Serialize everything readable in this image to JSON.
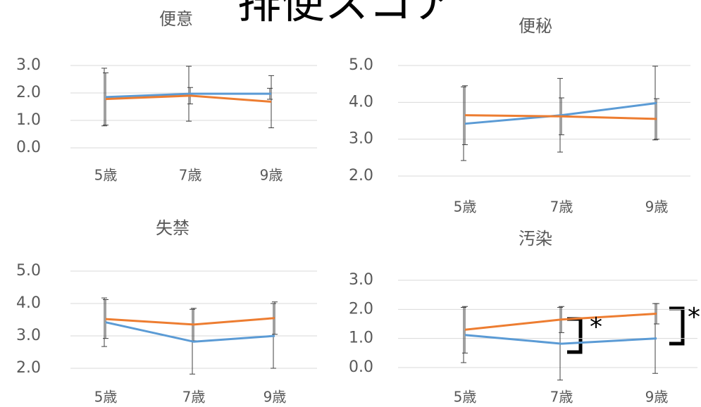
{
  "title": "排便スコア",
  "chart_data": [
    {
      "type": "line",
      "title": "便意",
      "categories": [
        "5歳",
        "7歳",
        "9歳"
      ],
      "series": [
        {
          "color": "#5b9bd5",
          "values": [
            1.85,
            1.97,
            1.97
          ],
          "errors": [
            1.05,
            1.0,
            0.2
          ]
        },
        {
          "color": "#ed7d31",
          "values": [
            1.78,
            1.9,
            1.68
          ],
          "errors": [
            0.95,
            0.3,
            0.95
          ]
        }
      ],
      "ylim": [
        0,
        3
      ],
      "yticks": [
        {
          "value": 0,
          "label": "0.0"
        },
        {
          "value": 1,
          "label": "1.0"
        },
        {
          "value": 2,
          "label": "2.0"
        },
        {
          "value": 3,
          "label": "3.0"
        }
      ],
      "grid": true
    },
    {
      "type": "line",
      "title": "便秘",
      "categories": [
        "5歳",
        "7歳",
        "9歳"
      ],
      "series": [
        {
          "color": "#5b9bd5",
          "values": [
            3.42,
            3.65,
            3.98
          ],
          "errors": [
            1.0,
            1.0,
            1.0
          ]
        },
        {
          "color": "#ed7d31",
          "values": [
            3.65,
            3.62,
            3.55
          ],
          "errors": [
            0.8,
            0.5,
            0.55
          ]
        }
      ],
      "ylim": [
        2,
        5
      ],
      "yticks": [
        {
          "value": 2,
          "label": "2.0"
        },
        {
          "value": 3,
          "label": "3.0"
        },
        {
          "value": 4,
          "label": "4.0"
        },
        {
          "value": 5,
          "label": "5.0"
        }
      ],
      "grid": true
    },
    {
      "type": "line",
      "title": "失禁",
      "categories": [
        "5歳",
        "7歳",
        "9歳"
      ],
      "series": [
        {
          "color": "#5b9bd5",
          "values": [
            3.42,
            2.82,
            3.0
          ],
          "errors": [
            0.75,
            1.0,
            1.0
          ]
        },
        {
          "color": "#ed7d31",
          "values": [
            3.52,
            3.35,
            3.55
          ],
          "errors": [
            0.6,
            0.5,
            0.5
          ]
        }
      ],
      "ylim": [
        2,
        5
      ],
      "yticks": [
        {
          "value": 2,
          "label": "2.0"
        },
        {
          "value": 3,
          "label": "3.0"
        },
        {
          "value": 4,
          "label": "4.0"
        },
        {
          "value": 5,
          "label": "5.0"
        }
      ],
      "grid": true
    },
    {
      "type": "line",
      "title": "汚染",
      "categories": [
        "5歳",
        "7歳",
        "9歳"
      ],
      "series": [
        {
          "color": "#5b9bd5",
          "values": [
            1.12,
            0.82,
            1.0
          ],
          "errors": [
            0.95,
            1.25,
            1.2
          ]
        },
        {
          "color": "#ed7d31",
          "values": [
            1.3,
            1.65,
            1.85
          ],
          "errors": [
            0.8,
            0.45,
            0.35
          ]
        }
      ],
      "ylim": [
        0,
        3
      ],
      "yticks": [
        {
          "value": 0,
          "label": "0.0"
        },
        {
          "value": 1,
          "label": "1.0"
        },
        {
          "value": 2,
          "label": "2.0"
        },
        {
          "value": 3,
          "label": "3.0"
        }
      ],
      "grid": true,
      "annotations": [
        "*",
        "*"
      ]
    }
  ]
}
